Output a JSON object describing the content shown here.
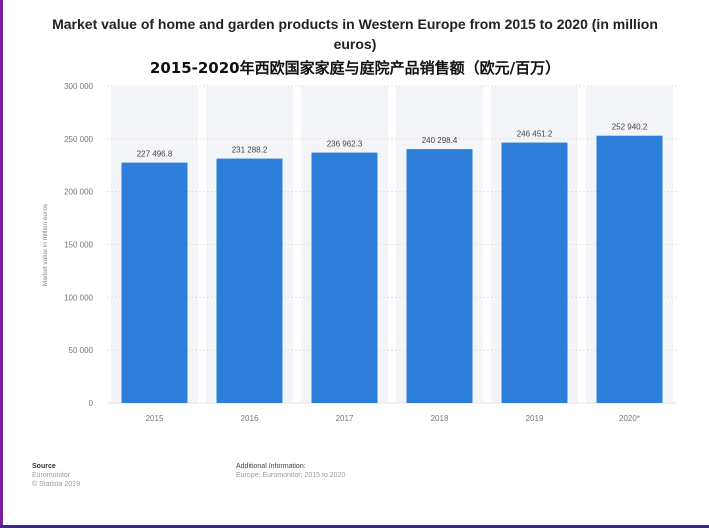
{
  "chart_data": {
    "type": "bar",
    "title": "Market value of home and garden products in Western Europe from 2015 to 2020 (in million euros)",
    "subtitle": "2015-2020年西欧国家家庭与庭院产品销售额（欧元/百万）",
    "ylabel": "Market value in million euros",
    "xlabel": "",
    "categories": [
      "2015",
      "2016",
      "2017",
      "2018",
      "2019",
      "2020*"
    ],
    "values": [
      227496.8,
      231288.2,
      236962.3,
      240298.4,
      246451.2,
      252940.2
    ],
    "value_labels": [
      "227 496.8",
      "231 288.2",
      "236 962.3",
      "240 298.4",
      "246 451.2",
      "252 940.2"
    ],
    "ylim": [
      0,
      300000
    ],
    "yticks": [
      0,
      50000,
      100000,
      150000,
      200000,
      250000,
      300000
    ],
    "ytick_labels": [
      "0",
      "50 000",
      "100 000",
      "150 000",
      "200 000",
      "250 000",
      "300 000"
    ],
    "grid": true,
    "bar_color": "#2e7fd9",
    "column_band_color": "#f3f5f8",
    "legend": "none"
  },
  "footer": {
    "source_heading": "Source",
    "source_lines": [
      "Euromonitor",
      "© Statista 2019"
    ],
    "info_heading": "Additional Information:",
    "info_lines": [
      "Europe; Euromonitor; 2015 to 2020"
    ]
  }
}
